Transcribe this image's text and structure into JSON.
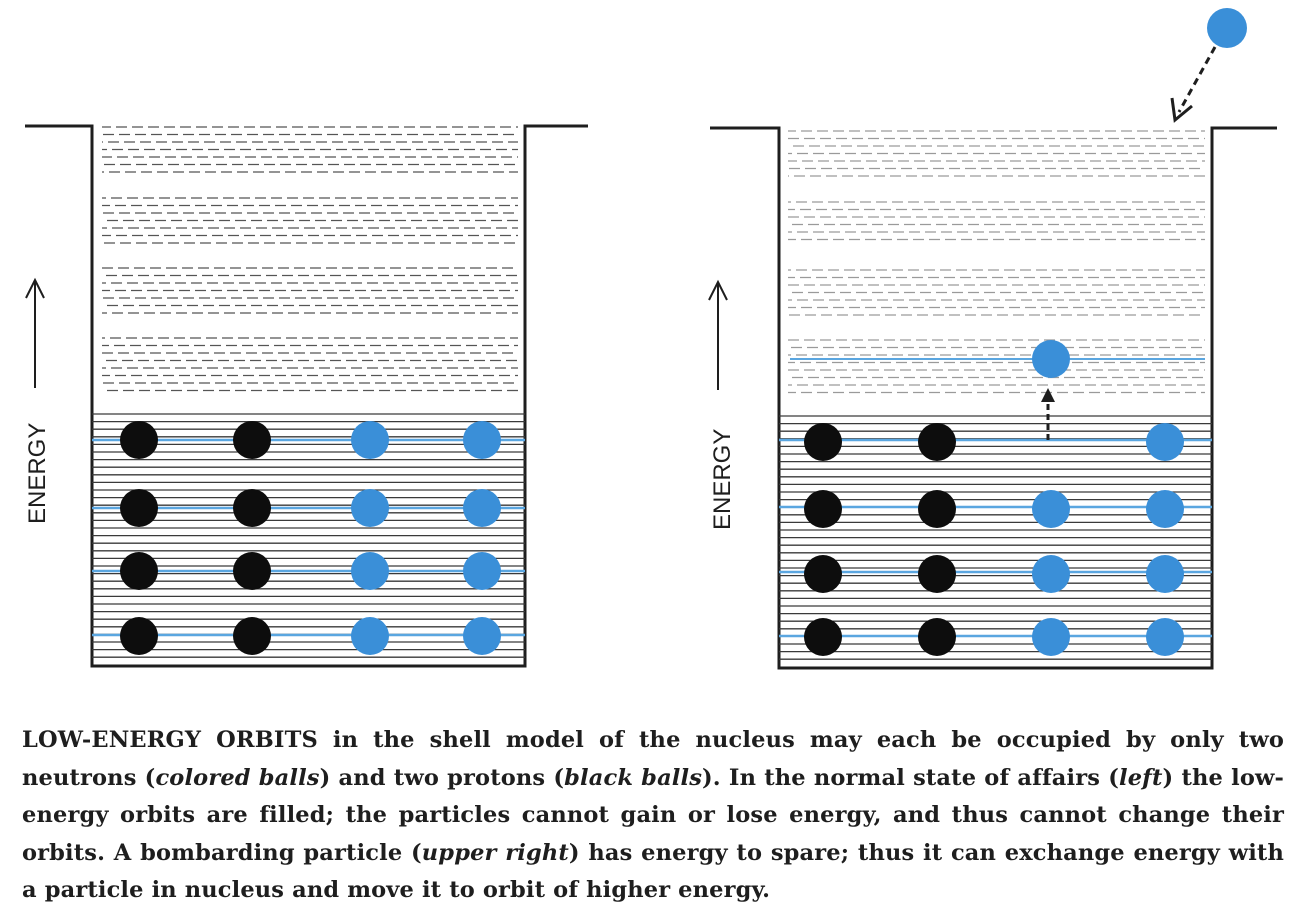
{
  "colors": {
    "neutron": "#3a8fd8",
    "proton": "#0d0d0d",
    "orbit_highlight": "#5aa6e0",
    "ink": "#1e1e1e"
  },
  "diagram": {
    "left_panel": {
      "axis_label": "ENERGY",
      "filled_levels": 4,
      "protons_per_level": 2,
      "neutrons_per_level": 2
    },
    "right_panel": {
      "axis_label": "ENERGY",
      "filled_levels": 4,
      "excited_neutron": "promoted from lowest unfilled slot to a higher orbit",
      "bombarding_particle": "neutron entering from upper right"
    }
  },
  "caption": {
    "lead": "LOW-ENERGY ORBITS",
    "p1": " in the shell model of the nucleus may each be occupied by only two neutrons (",
    "i1": "colored balls",
    "p2": ") and two protons (",
    "i2": "black balls",
    "p3": "). In the normal state of affairs (",
    "i3": "left",
    "p4": ") the low-energy orbits are filled; the particles cannot gain or lose energy, and thus cannot change their orbits. A bombarding particle (",
    "i4": "upper right",
    "p5": ") has energy to spare; thus it can exchange energy with a particle in nucleus and move it to orbit of higher energy."
  }
}
